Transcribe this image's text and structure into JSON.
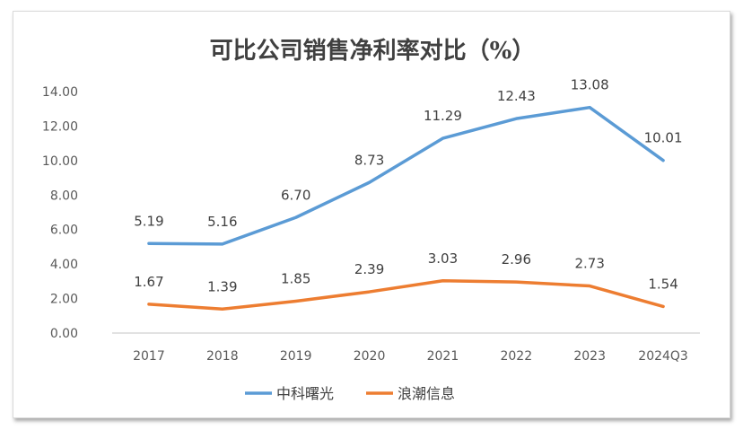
{
  "chart_data": {
    "type": "line",
    "title": "可比公司销售净利率对比（%）",
    "categories": [
      "2017",
      "2018",
      "2019",
      "2020",
      "2021",
      "2022",
      "2023",
      "2024Q3"
    ],
    "series": [
      {
        "name": "中科曙光",
        "color": "#5b9bd5",
        "values": [
          5.19,
          5.16,
          6.7,
          8.73,
          11.29,
          12.43,
          13.08,
          10.01
        ],
        "labels": [
          "5.19",
          "5.16",
          "6.70",
          "8.73",
          "11.29",
          "12.43",
          "13.08",
          "10.01"
        ]
      },
      {
        "name": "浪潮信息",
        "color": "#ed7d31",
        "values": [
          1.67,
          1.39,
          1.85,
          2.39,
          3.03,
          2.96,
          2.73,
          1.54
        ],
        "labels": [
          "1.67",
          "1.39",
          "1.85",
          "2.39",
          "3.03",
          "2.96",
          "2.73",
          "1.54"
        ]
      }
    ],
    "ylim": [
      0,
      14
    ],
    "yticks": [
      "0.00",
      "2.00",
      "4.00",
      "6.00",
      "8.00",
      "10.00",
      "12.00",
      "14.00"
    ],
    "grid": false,
    "legend_position": "bottom"
  }
}
